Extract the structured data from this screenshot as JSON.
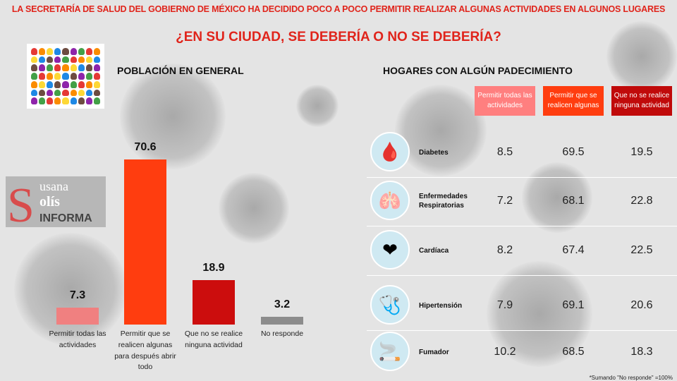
{
  "header": {
    "line1": "LA SECRETARÍA DE SALUD DEL GOBIERNO DE MÉXICO HA DECIDIDO POCO A POCO PERMITIR REALIZAR ALGUNAS ACTIVIDADES EN ALGUNOS LUGARES",
    "line2": "¿EN SU CIUDAD, SE DEBERÍA O NO SE DEBERÍA?"
  },
  "watermark": {
    "line1": "usana",
    "line2": "olís",
    "line3": "INFORMA"
  },
  "chart_data": [
    {
      "type": "bar",
      "title": "POBLACIÓN EN GENERAL",
      "categories": [
        "Permitir todas las actividades",
        "Permitir que se realicen algunas para después abrir todo",
        "Que no se realice ninguna actividad",
        "No responde"
      ],
      "values": [
        7.3,
        70.6,
        18.9,
        3.2
      ],
      "labels": [
        "7.3",
        "70.6",
        "18.9",
        "3.2"
      ],
      "colors": [
        "#f08080",
        "#ff3d0f",
        "#cc0d0d",
        "#8c8c8c"
      ]
    },
    {
      "type": "table",
      "title": "HOGARES CON ALGÚN PADECIMIENTO",
      "columns": [
        "Permitir todas las actividades",
        "Permitir que se realicen algunas",
        "Que no se realice ninguna actividad"
      ],
      "column_colors": [
        "#ff7f7f",
        "#ff3d0f",
        "#c00a0a"
      ],
      "rows": [
        {
          "name": "Diabetes",
          "icon": "glucometer-icon",
          "values": [
            "8.5",
            "69.5",
            "19.5"
          ]
        },
        {
          "name": "Enfermedades Respiratorias",
          "icon": "lungs-icon",
          "values": [
            "7.2",
            "68.1",
            "22.8"
          ]
        },
        {
          "name": "Cardíaca",
          "icon": "heart-icon",
          "values": [
            "8.2",
            "67.4",
            "22.5"
          ]
        },
        {
          "name": "Hipertensión",
          "icon": "stethoscope-icon",
          "values": [
            "7.9",
            "69.1",
            "20.6"
          ]
        },
        {
          "name": "Fumador",
          "icon": "cigarette-icon",
          "values": [
            "10.2",
            "68.5",
            "18.3"
          ]
        }
      ],
      "footnote": "*Sumando \"No responde\" =100%"
    }
  ]
}
